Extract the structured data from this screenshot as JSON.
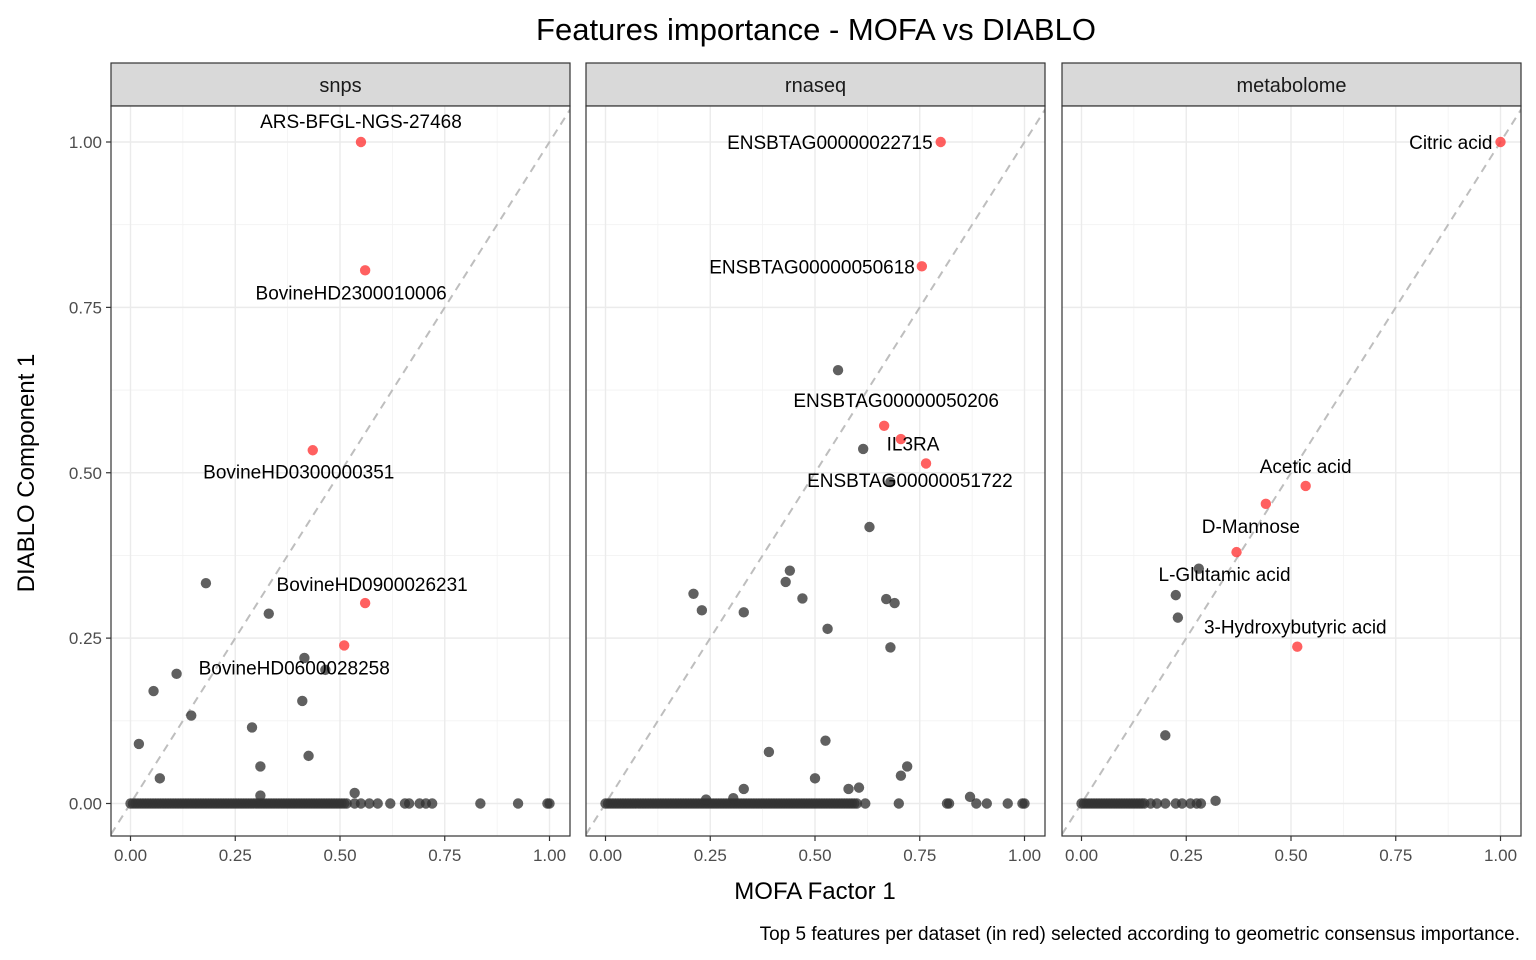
{
  "chart_data": {
    "type": "scatter",
    "title": "Features importance - MOFA vs DIABLO",
    "xlabel": "MOFA Factor 1",
    "ylabel": "DIABLO Component 1",
    "caption": "Top 5 features per dataset (in red) selected according to geometric consensus importance.",
    "xlim": [
      0,
      1
    ],
    "ylim": [
      0,
      1
    ],
    "x_ticks": [
      "0.00",
      "0.25",
      "0.50",
      "0.75",
      "1.00"
    ],
    "y_ticks": [
      "0.00",
      "0.25",
      "0.50",
      "0.75",
      "1.00"
    ],
    "grid": true,
    "reference_line": "y = x (dashed grey)",
    "colors": {
      "top": "#ff3333",
      "other": "#333333",
      "strip_bg": "#d9d9d9",
      "grid": "#ebebeb",
      "diagonal": "#bebebe"
    },
    "panels": [
      {
        "name": "snps",
        "top_features": [
          {
            "label": "ARS-BFGL-NGS-27468",
            "x": 0.55,
            "y": 1.0
          },
          {
            "label": "BovineHD2300010006",
            "x": 0.56,
            "y": 0.806
          },
          {
            "label": "BovineHD0300000351",
            "x": 0.435,
            "y": 0.534
          },
          {
            "label": "BovineHD0900026231",
            "x": 0.56,
            "y": 0.303
          },
          {
            "label": "BovineHD0600028258",
            "x": 0.51,
            "y": 0.239
          }
        ],
        "other_points": [
          [
            0.02,
            0.09
          ],
          [
            0.055,
            0.17
          ],
          [
            0.07,
            0.038
          ],
          [
            0.11,
            0.196
          ],
          [
            0.145,
            0.133
          ],
          [
            0.18,
            0.333
          ],
          [
            0.29,
            0.115
          ],
          [
            0.31,
            0.056
          ],
          [
            0.31,
            0.012
          ],
          [
            0.33,
            0.287
          ],
          [
            0.41,
            0.155
          ],
          [
            0.415,
            0.22
          ],
          [
            0.425,
            0.072
          ],
          [
            0.465,
            0.202
          ],
          [
            0.535,
            0.016
          ],
          [
            0.535,
            0.0
          ],
          [
            0.55,
            0.0
          ],
          [
            0.57,
            0.0
          ],
          [
            0.59,
            0.0
          ],
          [
            0.62,
            0.0
          ],
          [
            0.655,
            0.0
          ],
          [
            0.665,
            0.0
          ],
          [
            0.69,
            0.0
          ],
          [
            0.705,
            0.0
          ],
          [
            0.72,
            0.0
          ],
          [
            0.835,
            0.0
          ],
          [
            0.925,
            0.0
          ],
          [
            0.995,
            0.0
          ],
          [
            1.0,
            0.0
          ]
        ],
        "dense_zero_range": [
          0.0,
          0.52
        ]
      },
      {
        "name": "rnaseq",
        "top_features": [
          {
            "label": "ENSBTAG00000022715",
            "x": 0.8,
            "y": 1.0
          },
          {
            "label": "ENSBTAG00000050618",
            "x": 0.755,
            "y": 0.812
          },
          {
            "label": "ENSBTAG00000050206",
            "x": 0.665,
            "y": 0.571
          },
          {
            "label": "IL3RA",
            "x": 0.765,
            "y": 0.514
          },
          {
            "label": "ENSBTAG00000051722",
            "x": 0.705,
            "y": 0.551
          }
        ],
        "other_points": [
          [
            0.21,
            0.317
          ],
          [
            0.23,
            0.292
          ],
          [
            0.24,
            0.006
          ],
          [
            0.305,
            0.008
          ],
          [
            0.33,
            0.289
          ],
          [
            0.33,
            0.022
          ],
          [
            0.39,
            0.078
          ],
          [
            0.43,
            0.335
          ],
          [
            0.44,
            0.352
          ],
          [
            0.47,
            0.31
          ],
          [
            0.5,
            0.038
          ],
          [
            0.525,
            0.095
          ],
          [
            0.53,
            0.264
          ],
          [
            0.555,
            0.655
          ],
          [
            0.58,
            0.022
          ],
          [
            0.605,
            0.024
          ],
          [
            0.615,
            0.536
          ],
          [
            0.63,
            0.418
          ],
          [
            0.67,
            0.309
          ],
          [
            0.68,
            0.236
          ],
          [
            0.68,
            0.486
          ],
          [
            0.69,
            0.303
          ],
          [
            0.705,
            0.042
          ],
          [
            0.72,
            0.056
          ],
          [
            0.62,
            0.0
          ],
          [
            0.7,
            0.0
          ],
          [
            0.815,
            0.0
          ],
          [
            0.82,
            0.0
          ],
          [
            0.87,
            0.01
          ],
          [
            0.885,
            0.0
          ],
          [
            0.91,
            0.0
          ],
          [
            0.96,
            0.0
          ],
          [
            0.995,
            0.0
          ],
          [
            1.0,
            0.0
          ]
        ],
        "dense_zero_range": [
          0.0,
          0.6
        ]
      },
      {
        "name": "metabolome",
        "top_features": [
          {
            "label": "Citric acid",
            "x": 1.0,
            "y": 1.0
          },
          {
            "label": "Acetic acid",
            "x": 0.535,
            "y": 0.48
          },
          {
            "label": "D-Mannose",
            "x": 0.44,
            "y": 0.453
          },
          {
            "label": "L-Glutamic acid",
            "x": 0.37,
            "y": 0.38
          },
          {
            "label": "3-Hydroxybutyric acid",
            "x": 0.515,
            "y": 0.237
          }
        ],
        "other_points": [
          [
            0.2,
            0.103
          ],
          [
            0.225,
            0.315
          ],
          [
            0.23,
            0.281
          ],
          [
            0.28,
            0.355
          ],
          [
            0.32,
            0.004
          ],
          [
            0.285,
            0.0
          ],
          [
            0.275,
            0.0
          ],
          [
            0.26,
            0.0
          ],
          [
            0.24,
            0.0
          ],
          [
            0.225,
            0.0
          ],
          [
            0.2,
            0.0
          ],
          [
            0.18,
            0.0
          ],
          [
            0.165,
            0.0
          ]
        ],
        "dense_zero_range": [
          0.0,
          0.155
        ]
      }
    ]
  }
}
